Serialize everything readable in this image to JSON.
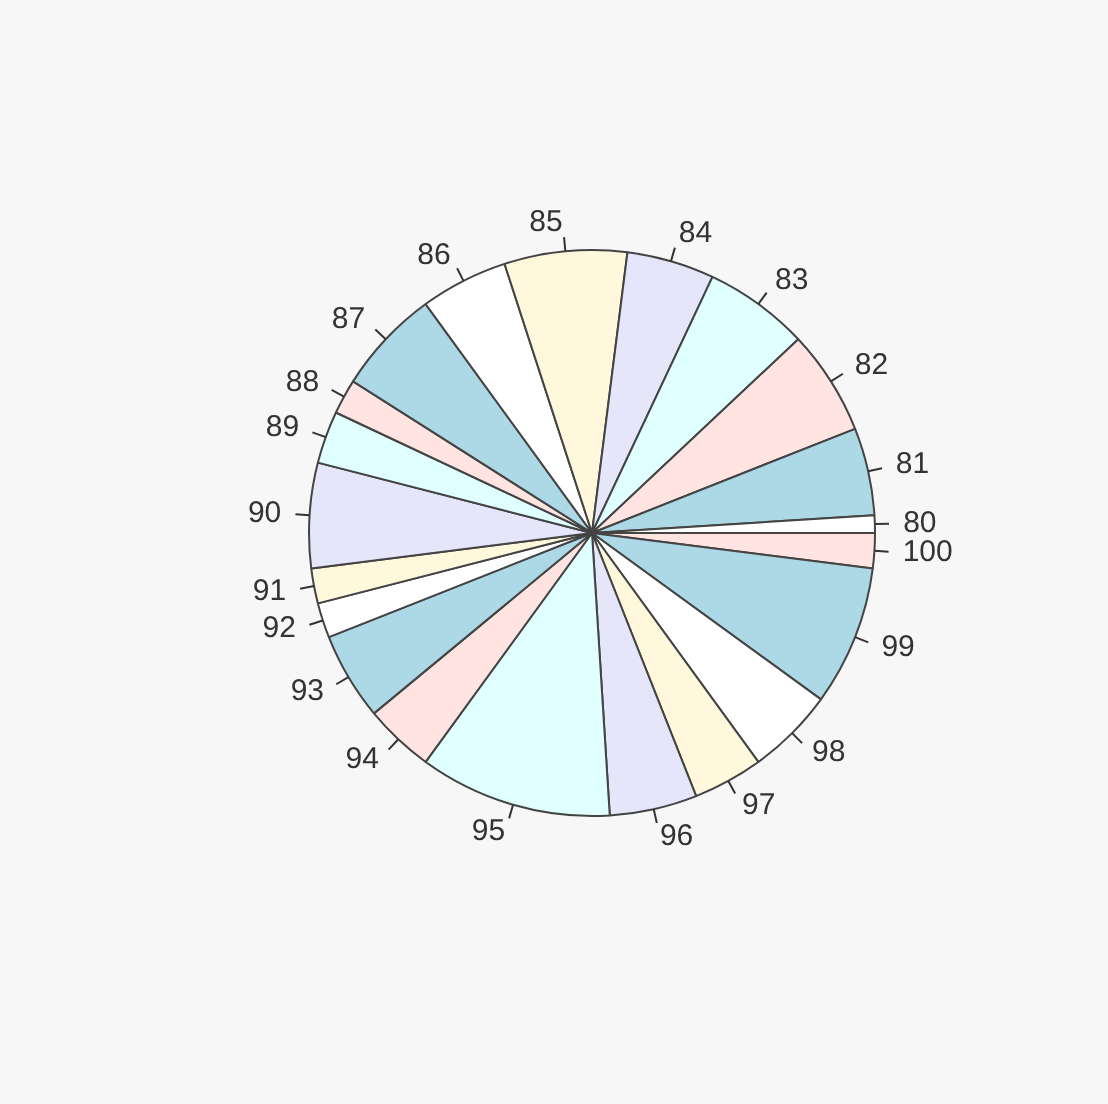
{
  "chart_data": {
    "type": "pie",
    "categories": [
      "80",
      "81",
      "82",
      "83",
      "84",
      "85",
      "86",
      "87",
      "88",
      "89",
      "90",
      "91",
      "92",
      "93",
      "94",
      "95",
      "96",
      "97",
      "98",
      "99",
      "100"
    ],
    "values": [
      1,
      5,
      6,
      6,
      5,
      7,
      5,
      6,
      2,
      3,
      6,
      2,
      2,
      5,
      4,
      11,
      5,
      4,
      5,
      8,
      2
    ],
    "colors": [
      "#ffffff",
      "#add8e6",
      "#ffe4e1",
      "#e0ffff",
      "#e6e6fa",
      "#fff8dc",
      "#ffffff",
      "#add8e6",
      "#ffe4e1",
      "#e0ffff",
      "#e6e6fa",
      "#fff8dc",
      "#ffffff",
      "#add8e6",
      "#ffe4e1",
      "#e0ffff",
      "#e6e6fa",
      "#fff8dc",
      "#ffffff",
      "#add8e6",
      "#ffe4e1"
    ]
  }
}
